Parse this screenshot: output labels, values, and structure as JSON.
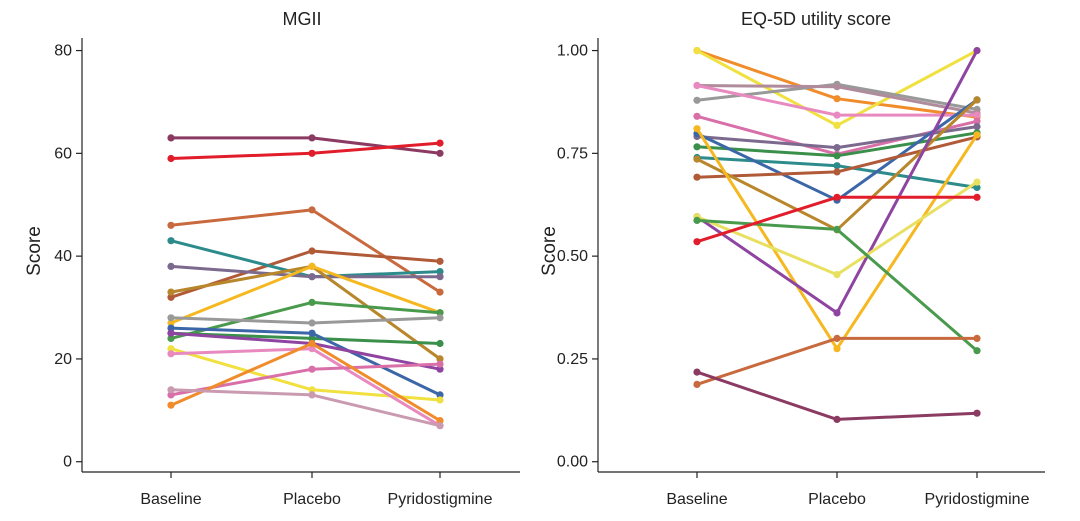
{
  "chart_data": [
    {
      "type": "line",
      "title": "MGII",
      "ylabel": "Score",
      "xlabel": "",
      "categories": [
        "Baseline",
        "Placebo",
        "Pyridostigmine"
      ],
      "ylim": [
        -2,
        84
      ],
      "yticks": [
        "0",
        "20",
        "40",
        "60",
        "80"
      ],
      "ytick_values": [
        0,
        20,
        40,
        60,
        80
      ],
      "grid": false,
      "series": [
        {
          "color": "#8b3a62",
          "values": [
            63,
            63,
            60
          ]
        },
        {
          "color": "#e21d2b",
          "values": [
            59,
            60,
            62
          ]
        },
        {
          "color": "#c8693e",
          "values": [
            46,
            49,
            33
          ]
        },
        {
          "color": "#b05a38",
          "values": [
            32,
            41,
            39
          ]
        },
        {
          "color": "#2e8b8b",
          "values": [
            43,
            36,
            37
          ]
        },
        {
          "color": "#7b6a8e",
          "values": [
            38,
            36,
            36
          ]
        },
        {
          "color": "#b8862b",
          "values": [
            33,
            38,
            20
          ]
        },
        {
          "color": "#f5b820",
          "values": [
            27,
            38,
            29
          ]
        },
        {
          "color": "#4a9a4e",
          "values": [
            24,
            31,
            29
          ]
        },
        {
          "color": "#999999",
          "values": [
            28,
            27,
            28
          ]
        },
        {
          "color": "#3a8f4a",
          "values": [
            25,
            24,
            23
          ]
        },
        {
          "color": "#3b67a8",
          "values": [
            26,
            25,
            13
          ]
        },
        {
          "color": "#8e44a0",
          "values": [
            25,
            23,
            18
          ]
        },
        {
          "color": "#f0e040",
          "values": [
            22,
            14,
            12
          ]
        },
        {
          "color": "#e889c0",
          "values": [
            21,
            22,
            7
          ]
        },
        {
          "color": "#d86fa8",
          "values": [
            13,
            18,
            19
          ]
        },
        {
          "color": "#f08c2a",
          "values": [
            11,
            23,
            8
          ]
        },
        {
          "color": "#c99ab0",
          "values": [
            14,
            13,
            7
          ]
        }
      ]
    },
    {
      "type": "line",
      "title": "EQ-5D utility score",
      "ylabel": "Score",
      "xlabel": "",
      "categories": [
        "Baseline",
        "Placebo",
        "Pyridostigmine"
      ],
      "ylim": [
        -0.025,
        1.05
      ],
      "yticks": [
        "0.00",
        "0.25",
        "0.50",
        "0.75",
        "1.00"
      ],
      "ytick_values": [
        0,
        0.25,
        0.5,
        0.75,
        1.0
      ],
      "grid": false,
      "series": [
        {
          "color": "#f08c2a",
          "values": [
            1.0,
            0.883,
            0.838
          ]
        },
        {
          "color": "#f0e040",
          "values": [
            1.0,
            0.818,
            1.0
          ]
        },
        {
          "color": "#999999",
          "values": [
            0.879,
            0.918,
            0.857
          ]
        },
        {
          "color": "#b08b9c",
          "values": [
            0.915,
            0.912,
            0.848
          ]
        },
        {
          "color": "#e889c0",
          "values": [
            0.915,
            0.843,
            0.843
          ]
        },
        {
          "color": "#d86fa8",
          "values": [
            0.84,
            0.748,
            0.828
          ]
        },
        {
          "color": "#7b6a8e",
          "values": [
            0.791,
            0.764,
            0.815
          ]
        },
        {
          "color": "#3a8f4a",
          "values": [
            0.766,
            0.744,
            0.8
          ]
        },
        {
          "color": "#2e8b8b",
          "values": [
            0.74,
            0.72,
            0.667
          ]
        },
        {
          "color": "#3b67a8",
          "values": [
            0.798,
            0.636,
            0.88
          ]
        },
        {
          "color": "#b05a38",
          "values": [
            0.692,
            0.705,
            0.79
          ]
        },
        {
          "color": "#b8862b",
          "values": [
            0.736,
            0.564,
            0.88
          ]
        },
        {
          "color": "#f5b820",
          "values": [
            0.81,
            0.275,
            0.795
          ]
        },
        {
          "color": "#8e44a0",
          "values": [
            0.596,
            0.362,
            1.0
          ]
        },
        {
          "color": "#e8e060",
          "values": [
            0.596,
            0.455,
            0.68
          ]
        },
        {
          "color": "#4a9a4e",
          "values": [
            0.587,
            0.565,
            0.27
          ]
        },
        {
          "color": "#e21d2b",
          "values": [
            0.535,
            0.643,
            0.643
          ]
        },
        {
          "color": "#c8693e",
          "values": [
            0.188,
            0.3,
            0.3
          ]
        },
        {
          "color": "#8b3a62",
          "values": [
            0.218,
            0.103,
            0.118
          ]
        }
      ]
    }
  ]
}
